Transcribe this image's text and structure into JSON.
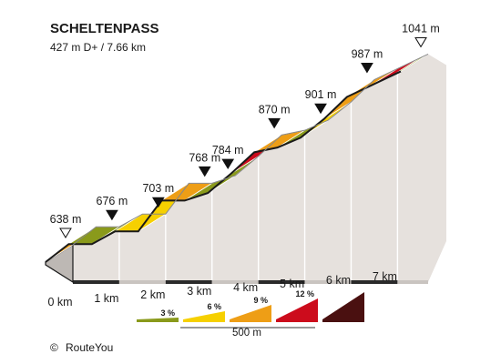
{
  "header": {
    "title": "SCHELTENPASS",
    "subtitle": "427 m D+ / 7.66 km"
  },
  "credit": {
    "symbol": "©",
    "text": "RouteYou"
  },
  "legend": {
    "scale_label": "500 m",
    "items": [
      {
        "label": "3 %",
        "color": "#8a9a1b"
      },
      {
        "label": "6 %",
        "color": "#f6d000"
      },
      {
        "label": "9 %",
        "color": "#ee9e16"
      },
      {
        "label": "12 %",
        "color": "#cc0c1c"
      },
      {
        "label": "",
        "color": "#4a1010"
      }
    ]
  },
  "colors": {
    "outline": "#1a1a1a",
    "wall": "#e6e1dd",
    "top_edge": "#888888",
    "base": "#2a2a2a",
    "grade_3": "#8a9a1b",
    "grade_6": "#f6d000",
    "grade_9": "#ee9e16",
    "grade_12": "#cc0c1c"
  },
  "chart_data": {
    "type": "area",
    "title": "SCHELTENPASS",
    "subtitle": "427 m D+ / 7.66 km",
    "x_unit": "km",
    "y_unit": "m",
    "xlim": [
      0,
      7.66
    ],
    "x_ticks": [
      {
        "x": 0,
        "label": "0 km"
      },
      {
        "x": 1,
        "label": "1 km"
      },
      {
        "x": 2,
        "label": "2 km"
      },
      {
        "x": 3,
        "label": "3 km"
      },
      {
        "x": 4,
        "label": "4 km"
      },
      {
        "x": 5,
        "label": "5 km"
      },
      {
        "x": 6,
        "label": "6 km"
      },
      {
        "x": 7,
        "label": "7 km"
      }
    ],
    "points": [
      {
        "x": 0,
        "elevation": 638,
        "label": "638 m",
        "marker": "start"
      },
      {
        "x": 0.5,
        "elevation": 676
      },
      {
        "x": 1,
        "elevation": 676,
        "label": "676 m"
      },
      {
        "x": 1.5,
        "elevation": 703
      },
      {
        "x": 2,
        "elevation": 703,
        "label": "703 m"
      },
      {
        "x": 2.5,
        "elevation": 768
      },
      {
        "x": 3,
        "elevation": 768,
        "label": "768 m"
      },
      {
        "x": 3.5,
        "elevation": 784,
        "label": "784 m"
      },
      {
        "x": 4,
        "elevation": 825
      },
      {
        "x": 4.5,
        "elevation": 870,
        "label": "870 m"
      },
      {
        "x": 5,
        "elevation": 880
      },
      {
        "x": 5.5,
        "elevation": 901,
        "label": "901 m"
      },
      {
        "x": 6,
        "elevation": 940
      },
      {
        "x": 6.5,
        "elevation": 987,
        "label": "987 m"
      },
      {
        "x": 7.66,
        "elevation": 1041,
        "label": "1041 m",
        "marker": "end"
      }
    ],
    "segments": [
      {
        "from_km": 0,
        "to_km": 0.5,
        "grade": "9 %"
      },
      {
        "from_km": 0.5,
        "to_km": 1,
        "grade": "3 %"
      },
      {
        "from_km": 1,
        "to_km": 1.5,
        "grade": "3 %"
      },
      {
        "from_km": 1.5,
        "to_km": 2,
        "grade": "6 %"
      },
      {
        "from_km": 2,
        "to_km": 2.5,
        "grade": "6 %"
      },
      {
        "from_km": 2.5,
        "to_km": 3,
        "grade": "9 %"
      },
      {
        "from_km": 3,
        "to_km": 3.5,
        "grade": "3 %"
      },
      {
        "from_km": 3.5,
        "to_km": 4,
        "grade": "3 %"
      },
      {
        "from_km": 4,
        "to_km": 4.5,
        "grade": "12 %"
      },
      {
        "from_km": 4.5,
        "to_km": 5,
        "grade": "9 %"
      },
      {
        "from_km": 5,
        "to_km": 5.5,
        "grade": "3 %"
      },
      {
        "from_km": 5.5,
        "to_km": 6,
        "grade": "6 %"
      },
      {
        "from_km": 6,
        "to_km": 6.5,
        "grade": "9 %"
      },
      {
        "from_km": 6.5,
        "to_km": 7,
        "grade": "9 %"
      },
      {
        "from_km": 7,
        "to_km": 7.5,
        "grade": "12 %"
      },
      {
        "from_km": 7.5,
        "to_km": 7.66,
        "grade": "3 %"
      }
    ]
  }
}
